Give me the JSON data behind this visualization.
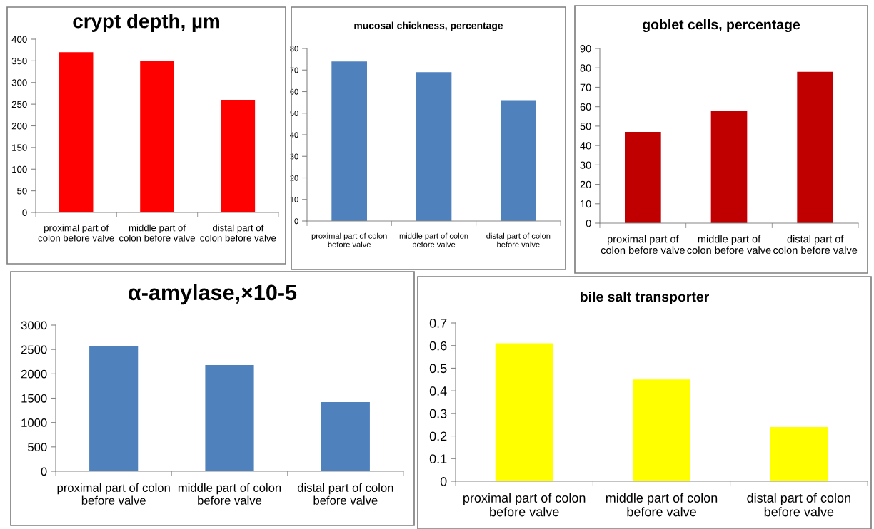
{
  "chart_data": [
    {
      "type": "bar",
      "title": "crypt depth, µm",
      "categories": [
        "proximal part of colon before valve",
        "middle part of colon before valve",
        "distal part of colon before valve"
      ],
      "values": [
        370,
        349,
        260
      ],
      "color": "#ff0000",
      "ylim": [
        0,
        400
      ],
      "yticks": [
        0,
        50,
        100,
        150,
        200,
        250,
        300,
        350,
        400
      ],
      "grid": false
    },
    {
      "type": "bar",
      "title": "mucosal chickness, percentage",
      "categories": [
        "proximal part of colon before valve",
        "middle part of colon before valve",
        "distal part of colon before valve"
      ],
      "values": [
        74,
        69,
        56
      ],
      "color": "#4f81bd",
      "ylim": [
        0,
        80
      ],
      "yticks": [
        0,
        10,
        20,
        30,
        40,
        50,
        60,
        70,
        80
      ],
      "grid": false
    },
    {
      "type": "bar",
      "title": "goblet cells, percentage",
      "categories": [
        "proximal part of colon before valve",
        "middle part of colon before valve",
        "distal part of colon before valve"
      ],
      "values": [
        47,
        58,
        78
      ],
      "color": "#c00000",
      "ylim": [
        0,
        90
      ],
      "yticks": [
        0,
        10,
        20,
        30,
        40,
        50,
        60,
        70,
        80,
        90
      ],
      "grid": false
    },
    {
      "type": "bar",
      "title": "α-amylase,×10-5",
      "categories": [
        "proximal part of colon before valve",
        "middle part of colon before valve",
        "distal part of colon before valve"
      ],
      "values": [
        2570,
        2180,
        1420
      ],
      "color": "#4f81bd",
      "ylim": [
        0,
        3000
      ],
      "yticks": [
        0,
        500,
        1000,
        1500,
        2000,
        2500,
        3000
      ],
      "grid": false
    },
    {
      "type": "bar",
      "title": "bile salt transporter",
      "categories": [
        "proximal part of colon before valve",
        "middle part of colon before valve",
        "distal part of colon before valve"
      ],
      "values": [
        0.61,
        0.45,
        0.24
      ],
      "color": "#ffff00",
      "ylim": [
        0,
        0.7
      ],
      "yticks": [
        0,
        0.1,
        0.2,
        0.3,
        0.4,
        0.5,
        0.6,
        0.7
      ],
      "grid": false
    }
  ]
}
